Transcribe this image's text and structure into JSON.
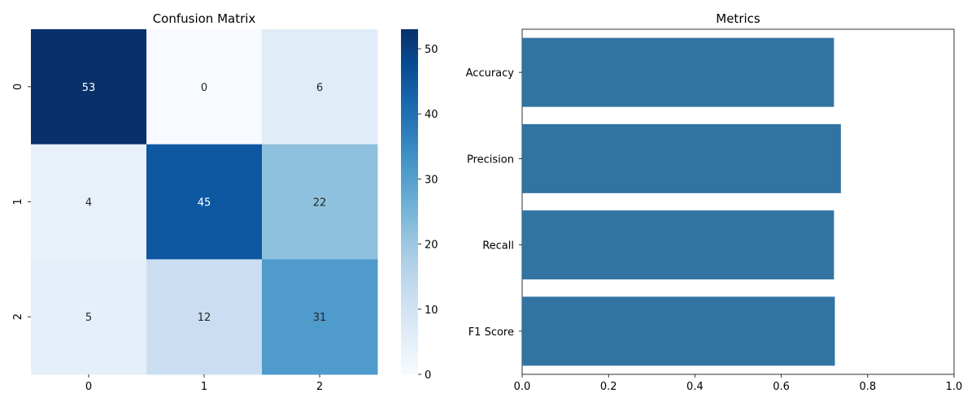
{
  "chart_data": [
    {
      "type": "heatmap",
      "title": "Confusion Matrix",
      "x_categories": [
        "0",
        "1",
        "2"
      ],
      "y_categories": [
        "0",
        "1",
        "2"
      ],
      "values": [
        [
          53,
          0,
          6
        ],
        [
          4,
          45,
          22
        ],
        [
          5,
          12,
          31
        ]
      ],
      "colormap": "Blues",
      "colorbar": {
        "range": [
          0,
          53
        ],
        "ticks": [
          0,
          10,
          20,
          30,
          40,
          50
        ]
      },
      "annotate": true
    },
    {
      "type": "bar",
      "orientation": "horizontal",
      "title": "Metrics",
      "categories": [
        "Accuracy",
        "Precision",
        "Recall",
        "F1 Score"
      ],
      "values": [
        0.722,
        0.738,
        0.722,
        0.724
      ],
      "xlim": [
        0,
        1
      ],
      "xticks": [
        "0.0",
        "0.2",
        "0.4",
        "0.6",
        "0.8",
        "1.0"
      ],
      "bar_color": "#3274a1"
    }
  ]
}
